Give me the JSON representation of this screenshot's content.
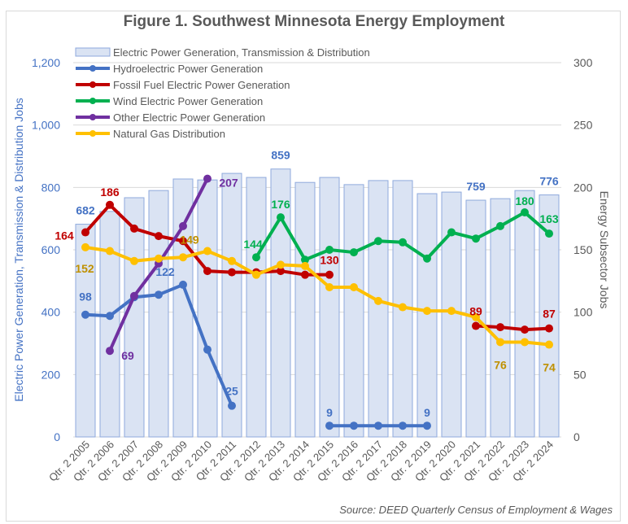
{
  "chart_data": {
    "type": "bar",
    "title": "Figure 1. Southwest Minnesota Energy Employment",
    "source": "Source: DEED Quarterly Census of Employment & Wages",
    "categories": [
      "Qtr. 2 2005",
      "Qtr. 2 2006",
      "Qtr. 2 2007",
      "Qtr. 2 2008",
      "Qtr. 2 2009",
      "Qtr. 2 2010",
      "Qtr. 2 2011",
      "Qtr. 2 2012",
      "Qtr. 2 2013",
      "Qtr. 2 2014",
      "Qtr. 2 2015",
      "Qtr. 2 2016",
      "Qtr. 2 2017",
      "Qtr. 2 2018",
      "Qtr. 2 2019",
      "Qtr. 2 2020",
      "Qtr. 2 2021",
      "Qtr. 2 2022",
      "Qtr. 2 2023",
      "Qtr. 2 2024"
    ],
    "ylabel": "Electric Power Generation, Transmission & Distribution Jobs",
    "y2label": "Energy Subsector Jobs",
    "ylim": [
      0,
      1200
    ],
    "y2lim": [
      0,
      300
    ],
    "yticks": [
      "0",
      "200",
      "400",
      "600",
      "800",
      "1,000",
      "1,200"
    ],
    "y2ticks": [
      "0",
      "50",
      "100",
      "150",
      "200",
      "250",
      "300"
    ],
    "grid": true,
    "legend": "top-left",
    "bar_series": {
      "name": "Electric Power Generation, Transmission & Distribution",
      "axis": "left",
      "color": "#dae3f3",
      "edge": "#8faadc",
      "values": [
        682,
        723,
        767,
        790,
        827,
        824,
        845,
        832,
        859,
        816,
        832,
        809,
        822,
        822,
        780,
        785,
        759,
        764,
        790,
        776
      ],
      "labels": {
        "0": "682",
        "8": "859",
        "16": "759",
        "19": "776"
      }
    },
    "line_series": [
      {
        "name": "Hydroelectric Power Generation",
        "axis": "right",
        "color": "#4472c4",
        "label_color": "#4472c4",
        "values": [
          98,
          97,
          112,
          114,
          122,
          70,
          25,
          null,
          null,
          null,
          9,
          9,
          9,
          9,
          9,
          null,
          null,
          null,
          null,
          null
        ],
        "labels": {
          "0": "98",
          "4": "122",
          "6": "25",
          "10": "9",
          "14": "9"
        }
      },
      {
        "name": "Fossil Fuel Electric Power Generation",
        "axis": "right",
        "color": "#c00000",
        "label_color": "#c00000",
        "values": [
          164,
          186,
          167,
          161,
          157,
          133,
          132,
          132,
          133,
          130,
          130,
          null,
          null,
          null,
          null,
          null,
          89,
          88,
          86,
          87
        ],
        "labels": {
          "0": "164",
          "1": "186",
          "10": "130",
          "16": "89",
          "19": "87"
        }
      },
      {
        "name": "Wind Electric Power Generation",
        "axis": "right",
        "color": "#00b050",
        "label_color": "#00b050",
        "values": [
          null,
          null,
          null,
          null,
          null,
          null,
          null,
          144,
          176,
          142,
          150,
          148,
          157,
          156,
          143,
          164,
          159,
          169,
          180,
          163
        ],
        "labels": {
          "7": "144",
          "8": "176",
          "18": "180",
          "19": "163"
        }
      },
      {
        "name": "Other Electric Power Generation",
        "axis": "right",
        "color": "#7030a0",
        "label_color": "#7030a0",
        "values": [
          null,
          69,
          113,
          139,
          169,
          207,
          null,
          null,
          null,
          null,
          null,
          null,
          null,
          null,
          null,
          null,
          null,
          null,
          null,
          null
        ],
        "labels": {
          "1": "69",
          "5": "207"
        }
      },
      {
        "name": "Natural Gas Distribution",
        "axis": "right",
        "color": "#ffc000",
        "label_color": "#bf9000",
        "values": [
          152,
          149,
          141,
          143,
          144,
          149,
          141,
          130,
          138,
          137,
          120,
          120,
          109,
          104,
          101,
          101,
          96,
          76,
          76,
          74
        ],
        "labels": {
          "0": "152",
          "5": "149",
          "17": "76",
          "19": "74"
        }
      }
    ]
  }
}
